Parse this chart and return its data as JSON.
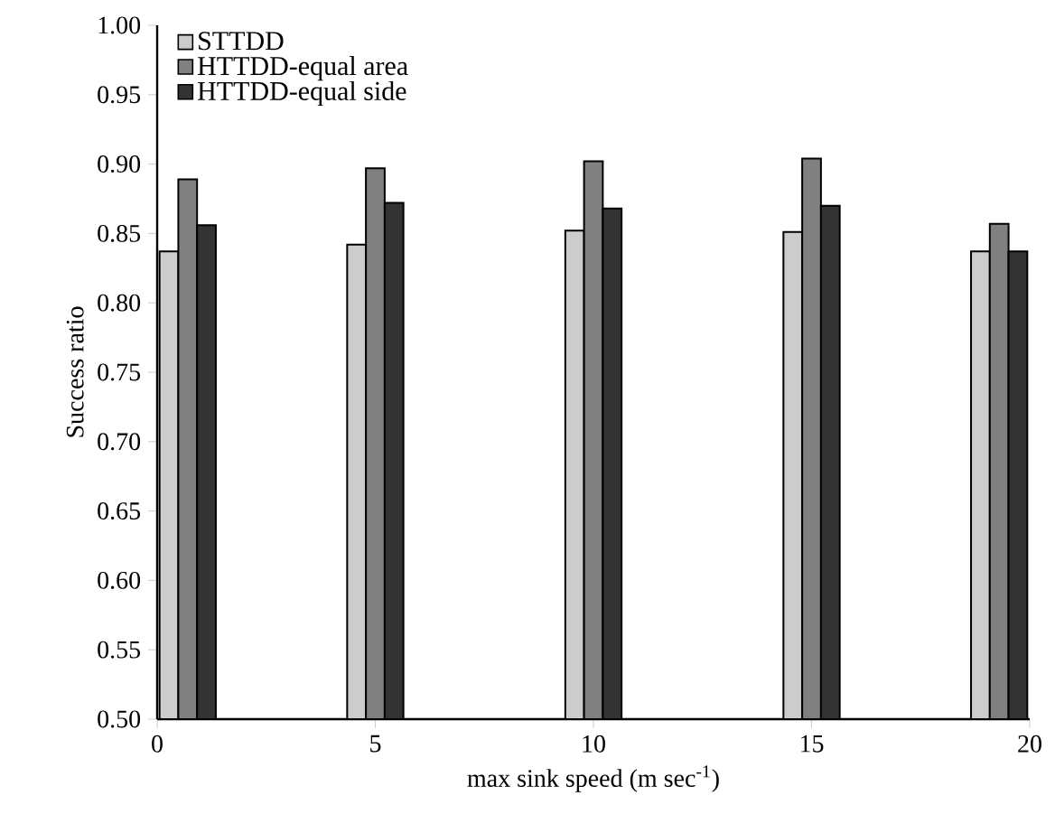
{
  "chart_data": {
    "type": "bar",
    "xlabel": "max sink speed (m sec$^{-1}$)",
    "ylabel": "Success ratio",
    "x": [
      0.7,
      5,
      10,
      15,
      19.3
    ],
    "series": [
      {
        "name": "STTDD",
        "color": "#cccccc",
        "values": [
          0.837,
          0.842,
          0.852,
          0.851,
          0.837
        ]
      },
      {
        "name": "HTTDD-equal area",
        "color": "#808080",
        "values": [
          0.889,
          0.897,
          0.902,
          0.904,
          0.857
        ]
      },
      {
        "name": "HTTDD-equal side",
        "color": "#333333",
        "values": [
          0.856,
          0.872,
          0.868,
          0.87,
          0.837
        ]
      }
    ],
    "xlim": [
      0,
      20
    ],
    "xticks": [
      0,
      5,
      10,
      15,
      20
    ],
    "ylim": [
      0.5,
      1.0
    ],
    "yticks": [
      {
        "value": 0.5,
        "label": "0.50"
      },
      {
        "value": 0.55,
        "label": "0.55"
      },
      {
        "value": 0.6,
        "label": "0.60"
      },
      {
        "value": 0.65,
        "label": "0.65"
      },
      {
        "value": 0.7,
        "label": "0.70"
      },
      {
        "value": 0.75,
        "label": "0.75"
      },
      {
        "value": 0.8,
        "label": "0.80"
      },
      {
        "value": 0.85,
        "label": "0.85"
      },
      {
        "value": 0.9,
        "label": "0.90"
      },
      {
        "value": 0.95,
        "label": "0.95"
      },
      {
        "value": 1.0,
        "label": "1.00"
      }
    ],
    "legend": "top left"
  }
}
